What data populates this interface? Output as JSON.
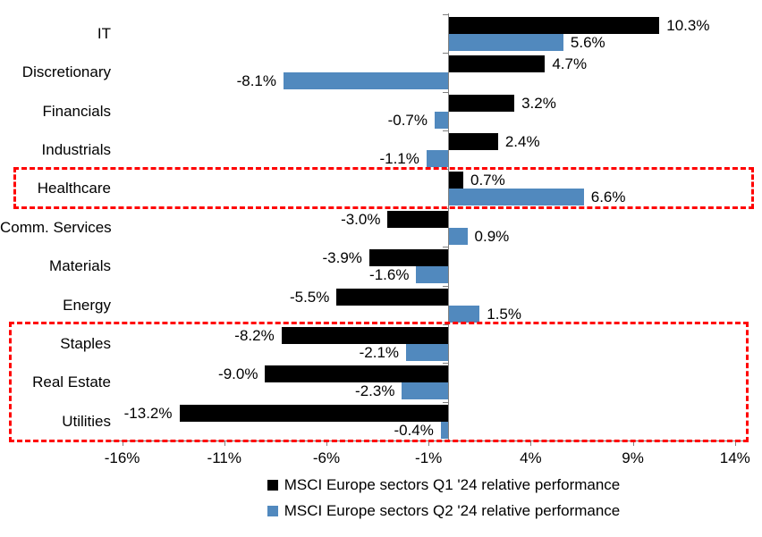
{
  "chart_data": {
    "type": "bar",
    "orientation": "horizontal",
    "title": "",
    "categories": [
      "IT",
      "Discretionary",
      "Financials",
      "Industrials",
      "Healthcare",
      "Comm. Services",
      "Materials",
      "Energy",
      "Staples",
      "Real Estate",
      "Utilities"
    ],
    "series": [
      {
        "name": "MSCI Europe sectors Q1 '24 relative performance",
        "color": "#000000",
        "values": [
          10.3,
          4.7,
          3.2,
          2.4,
          0.7,
          -3.0,
          -3.9,
          -5.5,
          -8.2,
          -9.0,
          -13.2
        ],
        "labels": [
          "10.3%",
          "4.7%",
          "3.2%",
          "2.4%",
          "0.7%",
          "-3.0%",
          "-3.9%",
          "-5.5%",
          "-8.2%",
          "-9.0%",
          "-13.2%"
        ]
      },
      {
        "name": "MSCI Europe sectors Q2 '24 relative performance",
        "color": "#5189BE",
        "values": [
          5.6,
          -8.1,
          -0.7,
          -1.1,
          6.6,
          0.9,
          -1.6,
          1.5,
          -2.1,
          -2.3,
          -0.4
        ],
        "labels": [
          "5.6%",
          "-8.1%",
          "-0.7%",
          "-1.1%",
          "6.6%",
          "0.9%",
          "-1.6%",
          "1.5%",
          "-2.1%",
          "-2.3%",
          "-0.4%"
        ]
      }
    ],
    "x_axis": {
      "unit": "%",
      "min": -16,
      "max": 14,
      "tick_values": [
        -16,
        -11,
        -6,
        -1,
        4,
        9,
        14
      ],
      "tick_labels": [
        "-16%",
        "-11%",
        "-6%",
        "-1%",
        "4%",
        "9%",
        "14%"
      ]
    },
    "legend_position": "bottom",
    "grid": false,
    "axis_color": "#808080",
    "annotations": {
      "highlight_boxes": [
        {
          "categories": [
            "Healthcare"
          ],
          "color": "#FF0000",
          "style": "dashed"
        },
        {
          "categories": [
            "Staples",
            "Real Estate",
            "Utilities"
          ],
          "color": "#FF0000",
          "style": "dashed"
        }
      ]
    }
  }
}
